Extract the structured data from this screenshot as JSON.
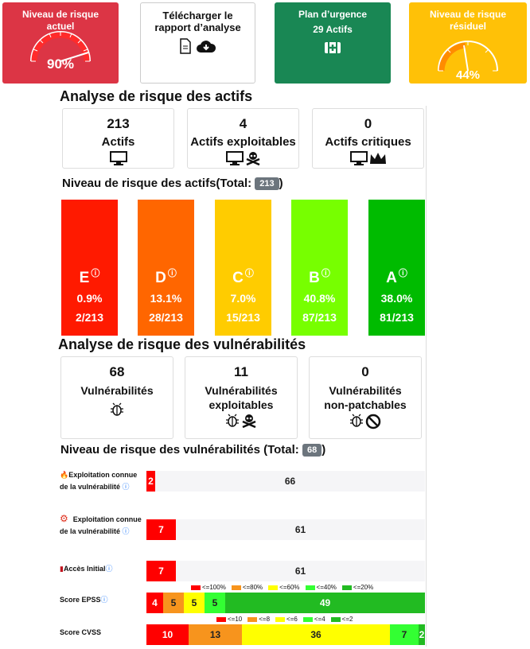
{
  "top_cards": {
    "current": {
      "title": "Niveau de risque actuel",
      "value": "90%",
      "level": 0.9
    },
    "report": {
      "title": "Télécharger le rapport d’analyse"
    },
    "urgent": {
      "title": "Plan d’urgence",
      "sub": "29 Actifs"
    },
    "residual": {
      "title": "Niveau de risque résiduel",
      "value": "44%",
      "level": 0.44
    }
  },
  "assets": {
    "heading": "Analyse de risque des actifs",
    "stats": [
      {
        "num": "213",
        "label": "Actifs"
      },
      {
        "num": "4",
        "label": "Actifs exploitables"
      },
      {
        "num": "0",
        "label": "Actifs critiques"
      }
    ],
    "level_heading": "Niveau de risque des actifs(Total:",
    "total": "213",
    "paren": ")",
    "grades": [
      {
        "g": "E",
        "p": "0.9%",
        "f": "2/213",
        "color": "#ff1a00"
      },
      {
        "g": "D",
        "p": "13.1%",
        "f": "28/213",
        "color": "#ff6600"
      },
      {
        "g": "C",
        "p": "7.0%",
        "f": "15/213",
        "color": "#ffcc00"
      },
      {
        "g": "B",
        "p": "40.8%",
        "f": "87/213",
        "color": "#77ff00"
      },
      {
        "g": "A",
        "p": "38.0%",
        "f": "81/213",
        "color": "#00bb00"
      }
    ]
  },
  "vulns": {
    "heading": "Analyse de risque des vulnérabilités",
    "stats": [
      {
        "num": "68",
        "label": "Vulnérabilités"
      },
      {
        "num": "11",
        "label": "Vulnérabilités exploitables"
      },
      {
        "num": "0",
        "label": "Vulnérabilités non-patchables"
      }
    ],
    "level_heading": "Niveau de risque des vulnérabilités (Total:",
    "total": "68",
    "paren": ")",
    "rows": [
      {
        "label": "Exploitation connue de la vulnérabilité",
        "red": "2",
        "rest": "66"
      },
      {
        "label": "Exploitation connue de la vulnérabilité",
        "red": "7",
        "rest": "61"
      },
      {
        "label": "Accès Initial",
        "red": "7",
        "rest": "61"
      }
    ],
    "epss": {
      "label": "Score EPSS",
      "legend": [
        "<=100%",
        "<=80%",
        "<=60%",
        "<=40%",
        "<=20%"
      ],
      "values": [
        "4",
        "5",
        "5",
        "5",
        "49"
      ]
    },
    "cvss": {
      "label": "Score CVSS",
      "legend": [
        "<=10",
        "<=8",
        "<=6",
        "<=4",
        "<=2"
      ],
      "values": [
        "10",
        "13",
        "36",
        "7",
        "2"
      ]
    }
  },
  "colors": {
    "red": "#ff0000",
    "orange": "#f7941d",
    "yellow": "#ffff00",
    "lightgreen": "#33ff33",
    "green": "#22bb22"
  }
}
